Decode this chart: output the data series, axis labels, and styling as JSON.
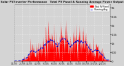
{
  "title": "Solar PV/Inverter Performance   Total PV Panel & Running Average Power Output",
  "bg_color": "#d4d4d4",
  "plot_bg": "#d4d4d4",
  "grid_color": "#ffffff",
  "bar_color": "#ff0000",
  "avg_color": "#0000cc",
  "ylim": [
    0,
    3200
  ],
  "ytick_labels": [
    "0",
    "500",
    "1k",
    "1.5k",
    "2k",
    "2.5k",
    "3k"
  ],
  "ytick_vals": [
    0,
    500,
    1000,
    1500,
    2000,
    2500,
    3000
  ],
  "n_points": 365,
  "legend_pv": "Total PV Panel",
  "legend_avg": "Running Avg"
}
